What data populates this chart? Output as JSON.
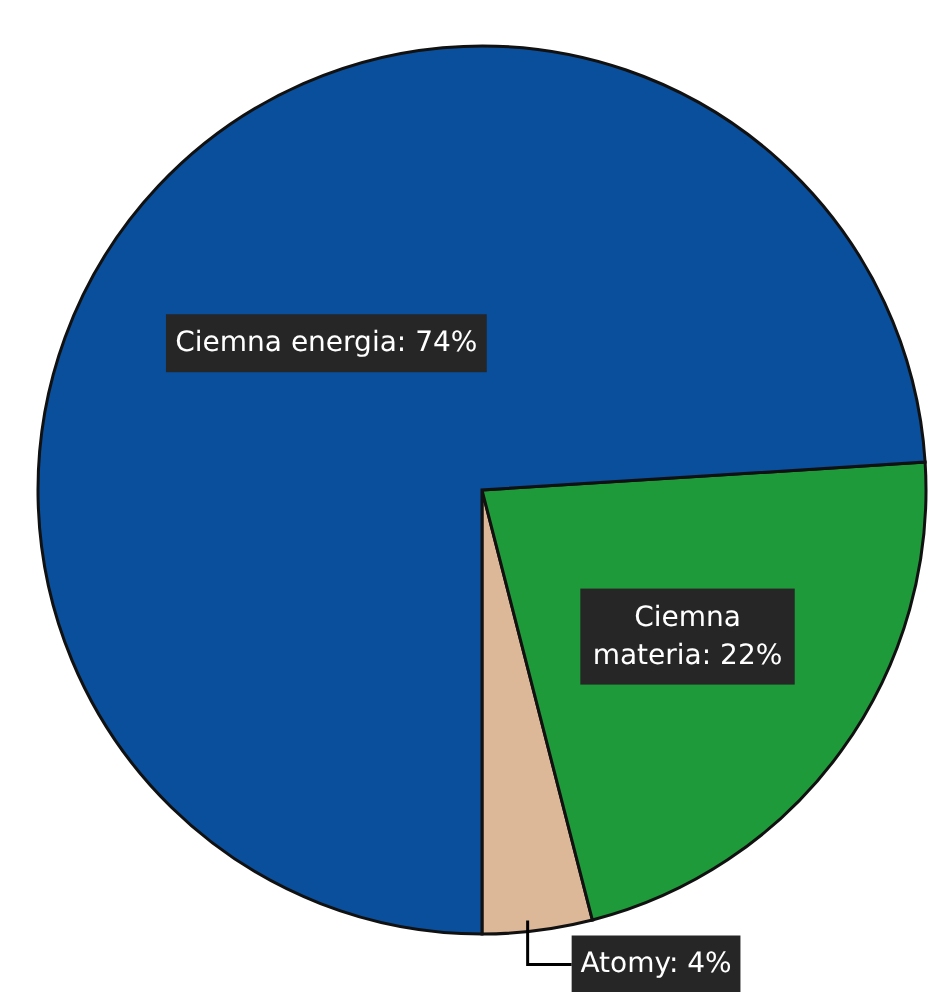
{
  "chart_data": {
    "type": "pie",
    "categories": [
      "Atomy",
      "Ciemna materia",
      "Ciemna energia"
    ],
    "values": [
      4,
      22,
      74
    ],
    "value_labels": [
      "4%",
      "22%",
      "74%"
    ],
    "colors": [
      "#dcb898",
      "#1f9a3a",
      "#0a4f9c"
    ]
  }
}
